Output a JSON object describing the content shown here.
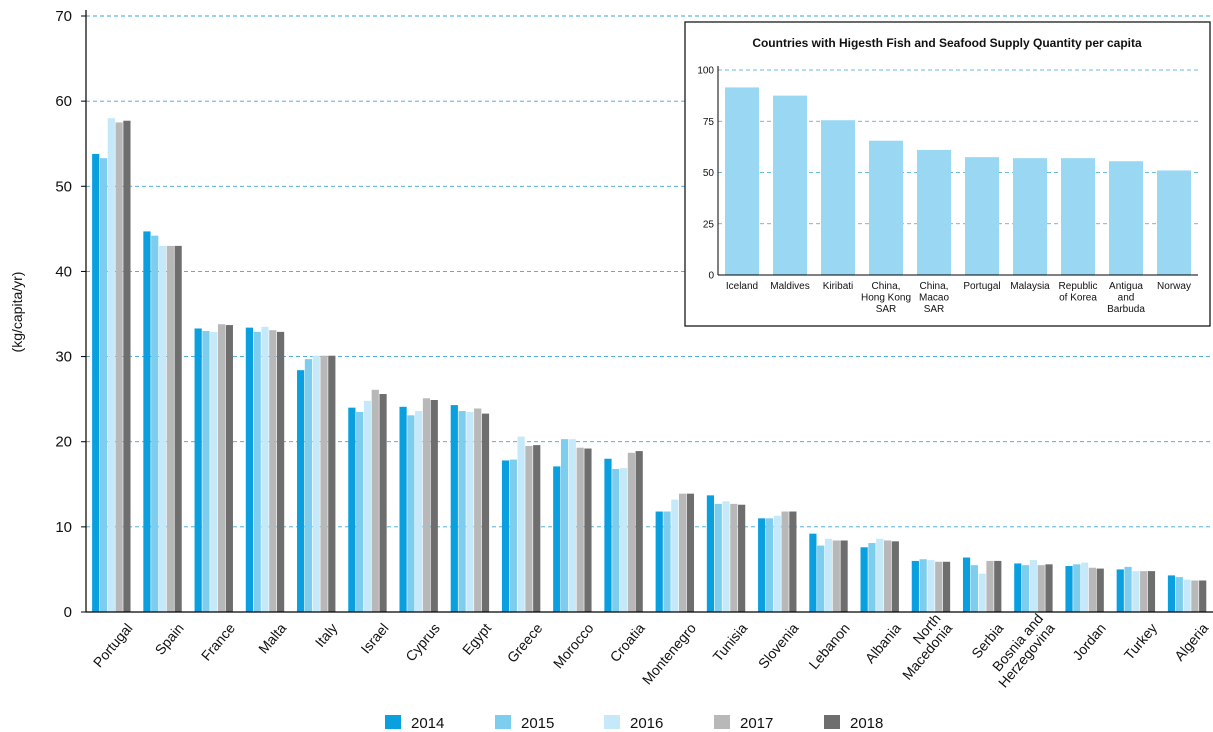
{
  "chart_data": [
    {
      "type": "bar",
      "title": "",
      "xlabel": "",
      "ylabel": "(kg/capita/yr)",
      "ylim": [
        0,
        70
      ],
      "yticks": [
        0,
        10,
        20,
        30,
        40,
        50,
        60,
        70
      ],
      "grid": true,
      "legend_position": "bottom",
      "categories": [
        "Portugal",
        "Spain",
        "France",
        "Malta",
        "Italy",
        "Israel",
        "Cyprus",
        "Egypt",
        "Greece",
        "Morocco",
        "Croatia",
        "Montenegro",
        "Tunisia",
        "Slovenia",
        "Lebanon",
        "Albania",
        "North Macedonia",
        "Serbia",
        "Bosnia and Herzegovina",
        "Jordan",
        "Turkey",
        "Algeria"
      ],
      "category_label_lines": [
        [
          "Portugal"
        ],
        [
          "Spain"
        ],
        [
          "France"
        ],
        [
          "Malta"
        ],
        [
          "Italy"
        ],
        [
          "Israel"
        ],
        [
          "Cyprus"
        ],
        [
          "Egypt"
        ],
        [
          "Greece"
        ],
        [
          "Morocco"
        ],
        [
          "Croatia"
        ],
        [
          "Montenegro"
        ],
        [
          "Tunisia"
        ],
        [
          "Slovenia"
        ],
        [
          "Lebanon"
        ],
        [
          "Albania"
        ],
        [
          "North",
          "Macedonia"
        ],
        [
          "Serbia"
        ],
        [
          "Bosnia and",
          "Herzegovina"
        ],
        [
          "Jordan"
        ],
        [
          "Turkey"
        ],
        [
          "Algeria"
        ]
      ],
      "series": [
        {
          "name": "2014",
          "color": "#0aa0e0",
          "values": [
            53.8,
            44.7,
            33.3,
            33.4,
            28.4,
            24.0,
            24.1,
            24.3,
            17.8,
            17.1,
            18.0,
            11.8,
            13.7,
            11.0,
            9.2,
            7.6,
            6.0,
            6.4,
            5.7,
            5.4,
            5.0,
            4.3
          ]
        },
        {
          "name": "2015",
          "color": "#7ccdee",
          "values": [
            53.3,
            44.2,
            33.0,
            32.9,
            29.7,
            23.5,
            23.1,
            23.6,
            17.9,
            20.3,
            16.8,
            11.8,
            12.7,
            11.0,
            7.8,
            8.1,
            6.2,
            5.5,
            5.5,
            5.6,
            5.3,
            4.1
          ]
        },
        {
          "name": "2016",
          "color": "#c6e9f9",
          "values": [
            58.0,
            43.0,
            32.9,
            33.5,
            30.1,
            24.8,
            23.6,
            23.5,
            20.6,
            20.3,
            16.9,
            13.2,
            13.0,
            11.3,
            8.6,
            8.6,
            6.1,
            4.5,
            6.1,
            5.8,
            4.8,
            3.8
          ]
        },
        {
          "name": "2017",
          "color": "#b8b8b8",
          "values": [
            57.5,
            43.0,
            33.8,
            33.1,
            30.1,
            26.1,
            25.1,
            23.9,
            19.5,
            19.3,
            18.7,
            13.9,
            12.7,
            11.8,
            8.4,
            8.4,
            5.9,
            6.0,
            5.5,
            5.2,
            4.8,
            3.7
          ]
        },
        {
          "name": "2018",
          "color": "#6e6e6e",
          "values": [
            57.7,
            43.0,
            33.7,
            32.9,
            30.1,
            25.6,
            24.9,
            23.3,
            19.6,
            19.2,
            18.9,
            13.9,
            12.6,
            11.8,
            8.4,
            8.3,
            5.9,
            6.0,
            5.6,
            5.1,
            4.8,
            3.7
          ]
        }
      ]
    },
    {
      "type": "bar",
      "title": "Countries with Higesth Fish and Seafood Supply Quantity per capita",
      "ylim": [
        0,
        100
      ],
      "yticks": [
        0,
        25,
        50,
        75,
        100
      ],
      "grid": true,
      "bar_color": "#9ad7f3",
      "categories": [
        "Iceland",
        "Maldives",
        "Kiribati",
        "China, Hong Kong SAR",
        "China, Macao SAR",
        "Portugal",
        "Malaysia",
        "Republic of Korea",
        "Antigua and Barbuda",
        "Norway"
      ],
      "category_label_lines": [
        [
          "Iceland"
        ],
        [
          "Maldives"
        ],
        [
          "Kiribati"
        ],
        [
          "China,",
          "Hong Kong",
          "SAR"
        ],
        [
          "China,",
          "Macao",
          "SAR"
        ],
        [
          "Portugal"
        ],
        [
          "Malaysia"
        ],
        [
          "Republic",
          "of Korea"
        ],
        [
          "Antigua",
          "and",
          "Barbuda"
        ],
        [
          "Norway"
        ]
      ],
      "values": [
        91.5,
        87.5,
        75.5,
        65.5,
        61.0,
        57.5,
        57.0,
        57.0,
        55.5,
        51.0
      ]
    }
  ],
  "colors": {
    "grid": "#3aa6d6",
    "axis": "#000000",
    "text": "#111111"
  }
}
